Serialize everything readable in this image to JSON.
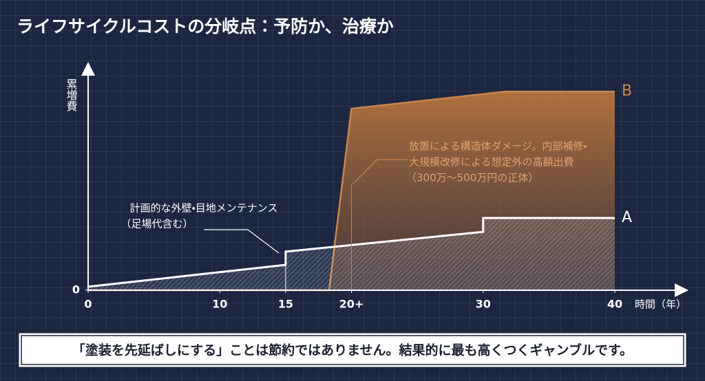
{
  "chart_data": {
    "type": "line",
    "title": "ライフサイクルコストの分岐点：予防か、治療か",
    "y_label": "累増費",
    "x_label": "時間（年）",
    "xlim": [
      0,
      40
    ],
    "ylim": [
      0,
      100
    ],
    "xticks": [
      0,
      10,
      15,
      {
        "value": 20,
        "label": "20+"
      },
      30,
      40
    ],
    "yticks": [
      0
    ],
    "series": [
      {
        "name": "A",
        "color": "#ffffff",
        "x": [
          0,
          15,
          15,
          30,
          30,
          40
        ],
        "values": [
          1.7,
          12.3,
          18.7,
          28.3,
          35,
          35
        ]
      },
      {
        "name": "B",
        "color": "#c8864d",
        "x": [
          0,
          18.3,
          20,
          31.7,
          40
        ],
        "values": [
          0,
          0,
          88,
          96.3,
          96.3
        ]
      }
    ],
    "annotations": [
      "計画的な外壁・目地メンテナンス",
      "（足場代含む）",
      "放置による構造体ダメージ。内部補修・",
      "大規模改修による想定外の高額出費",
      "（300万〜500万円の正体）"
    ],
    "footer": "「塗装を先延ばしにする」ことは節約ではありません。結果的に最も高くつくギャンブルです。"
  }
}
